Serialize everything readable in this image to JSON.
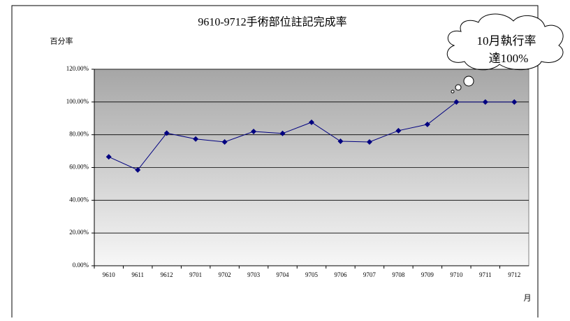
{
  "chart_data": {
    "type": "line",
    "title": "9610-9712手術部位註記完成率",
    "y_label": "百分率",
    "x_label": "月",
    "annotation": [
      "10月執行率",
      "達100%"
    ],
    "categories": [
      "9610",
      "9611",
      "9612",
      "9701",
      "9702",
      "9703",
      "9704",
      "9705",
      "9706",
      "9707",
      "9708",
      "9709",
      "9710",
      "9711",
      "9712"
    ],
    "values": [
      66.5,
      58.5,
      81,
      77.4,
      75.6,
      82,
      80.8,
      87.6,
      76,
      75.6,
      82.5,
      86.3,
      100,
      100,
      100
    ],
    "color": "#000080",
    "ylim": [
      0,
      120
    ],
    "yticks": [
      {
        "value": 0,
        "label": "0.00%"
      },
      {
        "value": 20,
        "label": "20.00%"
      },
      {
        "value": 40,
        "label": "40.00%"
      },
      {
        "value": 60,
        "label": "60.00%"
      },
      {
        "value": 80,
        "label": "80.00%"
      },
      {
        "value": 100,
        "label": "100.00%"
      },
      {
        "value": 120,
        "label": "120.00%"
      }
    ],
    "grid": true
  }
}
